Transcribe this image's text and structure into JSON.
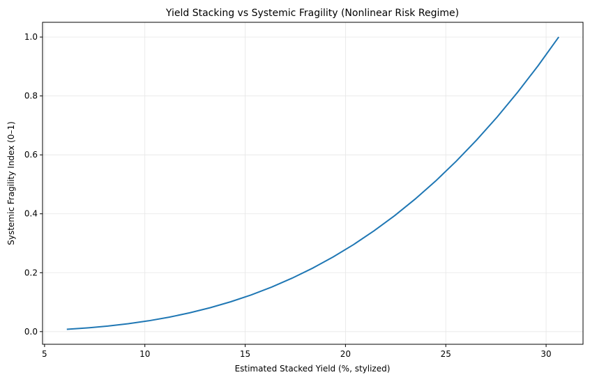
{
  "chart_data": {
    "type": "line",
    "title": "Yield Stacking vs Systemic Fragility (Nonlinear Risk Regime)",
    "xlabel": "Estimated Stacked Yield (%, stylized)",
    "ylabel": "Systemic Fragility Index (0–1)",
    "xlim": [
      4.9,
      31.84
    ],
    "ylim": [
      -0.043,
      1.05
    ],
    "xticks": [
      5,
      10,
      15,
      20,
      25,
      30
    ],
    "xtick_labels": [
      "5",
      "10",
      "15",
      "20",
      "25",
      "30"
    ],
    "yticks": [
      0.0,
      0.2,
      0.4,
      0.6,
      0.8,
      1.0
    ],
    "ytick_labels": [
      "0.0",
      "0.2",
      "0.4",
      "0.6",
      "0.8",
      "1.0"
    ],
    "grid": true,
    "line_color": "#1f77b4",
    "series": [
      {
        "x": [
          6.11,
          7.13,
          8.15,
          9.17,
          10.19,
          11.21,
          12.23,
          13.26,
          14.28,
          15.3,
          16.32,
          17.34,
          18.36,
          19.39,
          20.41,
          21.43,
          22.45,
          23.47,
          24.49,
          25.52,
          26.54,
          27.56,
          28.58,
          29.61,
          30.63
        ],
        "y": [
          0.0079,
          0.0126,
          0.0188,
          0.0268,
          0.0368,
          0.049,
          0.0637,
          0.0811,
          0.1013,
          0.1246,
          0.1513,
          0.1814,
          0.2154,
          0.2536,
          0.2958,
          0.3424,
          0.3937,
          0.4498,
          0.511,
          0.5784,
          0.6506,
          0.7285,
          0.8124,
          0.9034,
          1.0
        ]
      }
    ]
  }
}
